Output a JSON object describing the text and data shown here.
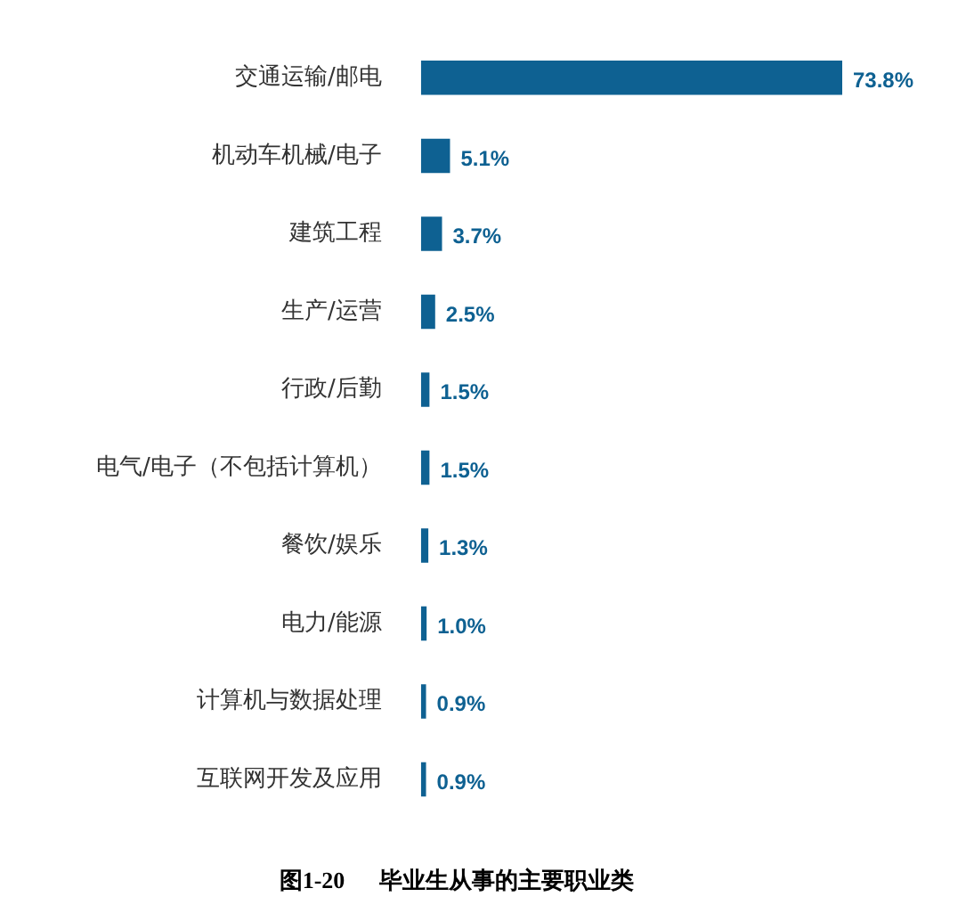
{
  "chart_data": {
    "type": "bar",
    "orientation": "horizontal",
    "title": "图1-20      毕业生从事的主要职业类",
    "categories": [
      "交通运输/邮电",
      "机动车机械/电子",
      "建筑工程",
      "生产/运营",
      "行政/后勤",
      "电气/电子（不包括计算机）",
      "餐饮/娱乐",
      "电力/能源",
      "计算机与数据处理",
      "互联网开发及应用"
    ],
    "values": [
      73.8,
      5.1,
      3.7,
      2.5,
      1.5,
      1.5,
      1.3,
      1.0,
      0.9,
      0.9
    ],
    "value_labels": [
      "73.8%",
      "5.1%",
      "3.7%",
      "2.5%",
      "1.5%",
      "1.5%",
      "1.3%",
      "1.0%",
      "0.9%",
      "0.9%"
    ],
    "color": "#0e6192",
    "legend": false
  }
}
